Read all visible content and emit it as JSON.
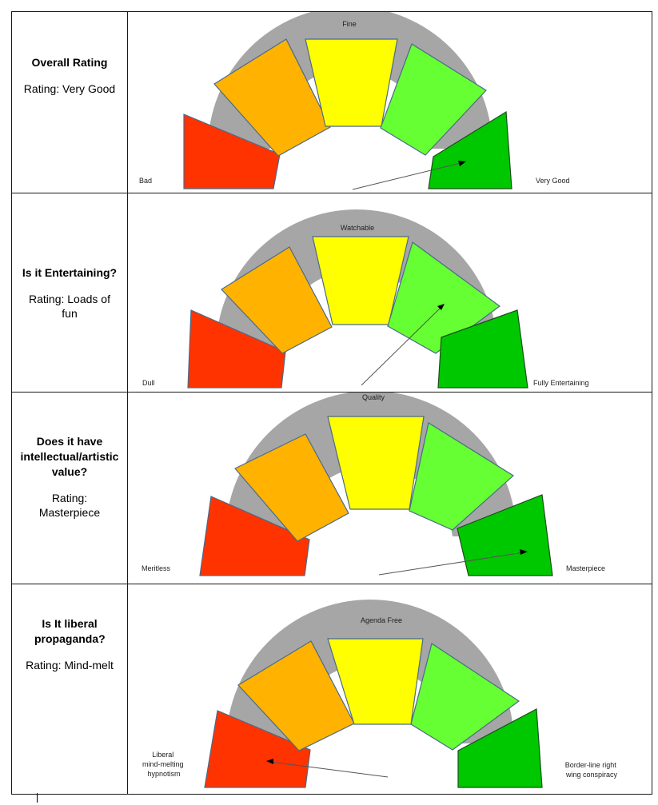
{
  "accent": {
    "seg_colors": [
      "#ff3300",
      "#ffb300",
      "#ffff00",
      "#66ff33",
      "#00c800"
    ],
    "track": "#a6a6a6",
    "outline": "#4a6a8a"
  },
  "rows": [
    {
      "title": "Overall Rating",
      "rating": "Rating: Very Good",
      "gauge": {
        "top_label": "Fine",
        "left_label": "Bad",
        "right_label": "Very Good",
        "needle_segment": 5,
        "needle_value": 0.9
      }
    },
    {
      "title": "Is it Entertaining?",
      "rating": "Rating: Loads of fun",
      "gauge": {
        "top_label": "Watchable",
        "left_label": "Dull",
        "right_label": "Fully Entertaining",
        "needle_segment": 4,
        "needle_value": 0.72
      }
    },
    {
      "title": "Does it have intellectual/artistic value?",
      "rating": "Rating: Masterpiece",
      "gauge": {
        "top_label": "Quality",
        "left_label": "Meritless",
        "right_label": "Masterpiece",
        "needle_segment": 5,
        "needle_value": 0.92
      }
    },
    {
      "title": "Is It liberal propaganda?",
      "rating": "Rating: Mind-melt",
      "gauge": {
        "top_label": "Agenda Free",
        "left_label": "Liberal mind-melting hypnotism",
        "right_label": "Border-line right wing conspiracy",
        "needle_segment": 1,
        "needle_value": 0.08
      }
    }
  ]
}
